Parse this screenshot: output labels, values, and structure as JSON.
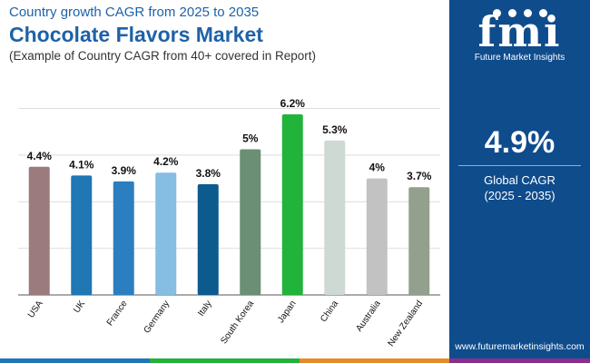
{
  "header": {
    "subtitle": "Country growth CAGR from 2025 to 2035",
    "title": "Chocolate Flavors Market",
    "note": "(Example of Country CAGR from 40+ covered in Report)"
  },
  "chart_data": {
    "type": "bar",
    "categories": [
      "USA",
      "UK",
      "France",
      "Germany",
      "Italy",
      "South Korea",
      "Japan",
      "China",
      "Australia",
      "New Zealand"
    ],
    "values": [
      4.4,
      4.1,
      3.9,
      4.2,
      3.8,
      5.0,
      6.2,
      5.3,
      4.0,
      3.7
    ],
    "value_labels": [
      "4.4%",
      "4.1%",
      "3.9%",
      "4.2%",
      "3.8%",
      "5%",
      "6.2%",
      "5.3%",
      "4%",
      "3.7%"
    ],
    "colors": [
      "#9b7b7b",
      "#1f77b4",
      "#2b7fc0",
      "#85bde3",
      "#0d5a8f",
      "#6a8f74",
      "#22b33a",
      "#cdd9d2",
      "#c2c2c2",
      "#93a08e"
    ],
    "ylim": [
      0,
      6.2
    ],
    "grid": true,
    "title": "",
    "xlabel": "",
    "ylabel": ""
  },
  "panel": {
    "logo": "fmi",
    "brand": "Future Market Insights",
    "global_value": "4.9%",
    "global_label": "Global CAGR",
    "global_years": "(2025 - 2035)",
    "website": "www.futuremarketinsights.com",
    "background": "#0f4c8c"
  },
  "footer": {
    "colors": [
      "#1f77b4",
      "#22b33a",
      "#e58b2a",
      "#8a2f8f"
    ]
  }
}
